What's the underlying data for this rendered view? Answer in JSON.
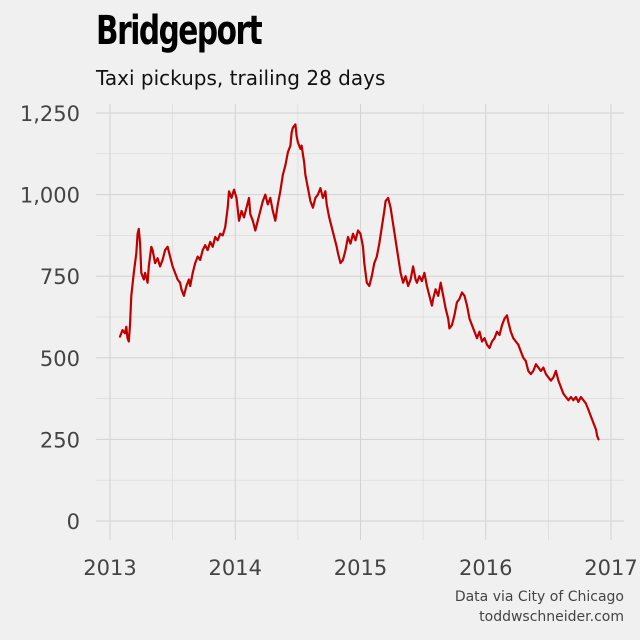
{
  "chart_data": {
    "type": "line",
    "title": "Bridgeport",
    "subtitle": "Taxi pickups, trailing 28 days",
    "xlabel": "",
    "ylabel": "",
    "xlim": [
      2013,
      2017.1
    ],
    "ylim": [
      -40,
      1290
    ],
    "x_ticks": [
      2013,
      2014,
      2015,
      2016,
      2017
    ],
    "x_tick_labels": [
      "2013",
      "2014",
      "2015",
      "2016",
      "2017"
    ],
    "y_ticks": [
      0,
      250,
      500,
      750,
      1000,
      1250
    ],
    "y_tick_labels": [
      "0",
      "250",
      "500",
      "750",
      "1,000",
      "1,250"
    ],
    "grid": true,
    "series": [
      {
        "color": "#c00000",
        "points": [
          [
            2013.08,
            565
          ],
          [
            2013.1,
            585
          ],
          [
            2013.12,
            575
          ],
          [
            2013.13,
            595
          ],
          [
            2013.14,
            560
          ],
          [
            2013.15,
            550
          ],
          [
            2013.16,
            600
          ],
          [
            2013.17,
            690
          ],
          [
            2013.19,
            760
          ],
          [
            2013.21,
            820
          ],
          [
            2013.22,
            880
          ],
          [
            2013.23,
            895
          ],
          [
            2013.24,
            850
          ],
          [
            2013.25,
            760
          ],
          [
            2013.27,
            740
          ],
          [
            2013.28,
            760
          ],
          [
            2013.3,
            730
          ],
          [
            2013.31,
            780
          ],
          [
            2013.33,
            840
          ],
          [
            2013.34,
            830
          ],
          [
            2013.36,
            790
          ],
          [
            2013.38,
            805
          ],
          [
            2013.4,
            780
          ],
          [
            2013.42,
            800
          ],
          [
            2013.44,
            830
          ],
          [
            2013.46,
            840
          ],
          [
            2013.48,
            810
          ],
          [
            2013.5,
            780
          ],
          [
            2013.52,
            760
          ],
          [
            2013.54,
            740
          ],
          [
            2013.56,
            730
          ],
          [
            2013.57,
            710
          ],
          [
            2013.59,
            690
          ],
          [
            2013.61,
            720
          ],
          [
            2013.63,
            740
          ],
          [
            2013.64,
            720
          ],
          [
            2013.66,
            760
          ],
          [
            2013.68,
            790
          ],
          [
            2013.7,
            810
          ],
          [
            2013.72,
            800
          ],
          [
            2013.74,
            830
          ],
          [
            2013.76,
            845
          ],
          [
            2013.78,
            830
          ],
          [
            2013.8,
            855
          ],
          [
            2013.82,
            840
          ],
          [
            2013.84,
            870
          ],
          [
            2013.86,
            860
          ],
          [
            2013.88,
            880
          ],
          [
            2013.9,
            875
          ],
          [
            2013.92,
            900
          ],
          [
            2013.94,
            960
          ],
          [
            2013.95,
            1010
          ],
          [
            2013.97,
            990
          ],
          [
            2013.99,
            1015
          ],
          [
            2014.01,
            990
          ],
          [
            2014.03,
            920
          ],
          [
            2014.05,
            950
          ],
          [
            2014.07,
            930
          ],
          [
            2014.09,
            960
          ],
          [
            2014.11,
            990
          ],
          [
            2014.12,
            940
          ],
          [
            2014.14,
            920
          ],
          [
            2014.16,
            890
          ],
          [
            2014.18,
            920
          ],
          [
            2014.2,
            950
          ],
          [
            2014.22,
            980
          ],
          [
            2014.24,
            1000
          ],
          [
            2014.26,
            970
          ],
          [
            2014.28,
            990
          ],
          [
            2014.3,
            950
          ],
          [
            2014.32,
            920
          ],
          [
            2014.34,
            970
          ],
          [
            2014.36,
            1010
          ],
          [
            2014.38,
            1060
          ],
          [
            2014.4,
            1090
          ],
          [
            2014.42,
            1130
          ],
          [
            2014.44,
            1150
          ],
          [
            2014.45,
            1190
          ],
          [
            2014.46,
            1205
          ],
          [
            2014.48,
            1215
          ],
          [
            2014.49,
            1180
          ],
          [
            2014.5,
            1160
          ],
          [
            2014.52,
            1140
          ],
          [
            2014.53,
            1150
          ],
          [
            2014.55,
            1100
          ],
          [
            2014.56,
            1060
          ],
          [
            2014.58,
            1020
          ],
          [
            2014.6,
            980
          ],
          [
            2014.62,
            960
          ],
          [
            2014.64,
            990
          ],
          [
            2014.66,
            1000
          ],
          [
            2014.68,
            1020
          ],
          [
            2014.7,
            990
          ],
          [
            2014.72,
            1010
          ],
          [
            2014.73,
            970
          ],
          [
            2014.75,
            930
          ],
          [
            2014.77,
            900
          ],
          [
            2014.79,
            870
          ],
          [
            2014.81,
            840
          ],
          [
            2014.82,
            820
          ],
          [
            2014.84,
            790
          ],
          [
            2014.86,
            800
          ],
          [
            2014.88,
            830
          ],
          [
            2014.9,
            870
          ],
          [
            2014.92,
            850
          ],
          [
            2014.94,
            880
          ],
          [
            2014.96,
            860
          ],
          [
            2014.98,
            890
          ],
          [
            2015.0,
            880
          ],
          [
            2015.02,
            840
          ],
          [
            2015.03,
            790
          ],
          [
            2015.05,
            730
          ],
          [
            2015.07,
            720
          ],
          [
            2015.09,
            750
          ],
          [
            2015.11,
            790
          ],
          [
            2015.13,
            810
          ],
          [
            2015.15,
            850
          ],
          [
            2015.17,
            900
          ],
          [
            2015.19,
            950
          ],
          [
            2015.2,
            980
          ],
          [
            2015.22,
            990
          ],
          [
            2015.24,
            960
          ],
          [
            2015.26,
            910
          ],
          [
            2015.28,
            860
          ],
          [
            2015.3,
            810
          ],
          [
            2015.32,
            760
          ],
          [
            2015.34,
            730
          ],
          [
            2015.36,
            750
          ],
          [
            2015.38,
            720
          ],
          [
            2015.4,
            740
          ],
          [
            2015.42,
            780
          ],
          [
            2015.44,
            740
          ],
          [
            2015.45,
            730
          ],
          [
            2015.47,
            750
          ],
          [
            2015.49,
            735
          ],
          [
            2015.51,
            760
          ],
          [
            2015.53,
            720
          ],
          [
            2015.55,
            690
          ],
          [
            2015.57,
            660
          ],
          [
            2015.58,
            680
          ],
          [
            2015.6,
            710
          ],
          [
            2015.62,
            690
          ],
          [
            2015.64,
            730
          ],
          [
            2015.66,
            690
          ],
          [
            2015.68,
            650
          ],
          [
            2015.7,
            620
          ],
          [
            2015.71,
            590
          ],
          [
            2015.73,
            600
          ],
          [
            2015.75,
            630
          ],
          [
            2015.77,
            670
          ],
          [
            2015.79,
            680
          ],
          [
            2015.81,
            700
          ],
          [
            2015.83,
            690
          ],
          [
            2015.85,
            660
          ],
          [
            2015.87,
            620
          ],
          [
            2015.89,
            600
          ],
          [
            2015.91,
            580
          ],
          [
            2015.93,
            560
          ],
          [
            2015.95,
            580
          ],
          [
            2015.97,
            550
          ],
          [
            2015.99,
            560
          ],
          [
            2016.01,
            540
          ],
          [
            2016.03,
            530
          ],
          [
            2016.05,
            550
          ],
          [
            2016.07,
            560
          ],
          [
            2016.09,
            580
          ],
          [
            2016.11,
            570
          ],
          [
            2016.13,
            600
          ],
          [
            2016.15,
            620
          ],
          [
            2016.17,
            630
          ],
          [
            2016.18,
            610
          ],
          [
            2016.2,
            580
          ],
          [
            2016.22,
            560
          ],
          [
            2016.24,
            550
          ],
          [
            2016.26,
            540
          ],
          [
            2016.28,
            520
          ],
          [
            2016.3,
            500
          ],
          [
            2016.32,
            490
          ],
          [
            2016.34,
            460
          ],
          [
            2016.36,
            450
          ],
          [
            2016.38,
            460
          ],
          [
            2016.4,
            480
          ],
          [
            2016.42,
            470
          ],
          [
            2016.44,
            460
          ],
          [
            2016.46,
            470
          ],
          [
            2016.48,
            450
          ],
          [
            2016.5,
            440
          ],
          [
            2016.52,
            430
          ],
          [
            2016.54,
            440
          ],
          [
            2016.56,
            460
          ],
          [
            2016.58,
            430
          ],
          [
            2016.6,
            410
          ],
          [
            2016.62,
            390
          ],
          [
            2016.64,
            380
          ],
          [
            2016.66,
            370
          ],
          [
            2016.68,
            380
          ],
          [
            2016.7,
            370
          ],
          [
            2016.72,
            380
          ],
          [
            2016.74,
            365
          ],
          [
            2016.76,
            380
          ],
          [
            2016.78,
            370
          ],
          [
            2016.8,
            360
          ],
          [
            2016.82,
            340
          ],
          [
            2016.84,
            320
          ],
          [
            2016.86,
            300
          ],
          [
            2016.88,
            280
          ],
          [
            2016.89,
            260
          ],
          [
            2016.9,
            250
          ]
        ]
      }
    ]
  },
  "caption": {
    "line1": "Data via City of Chicago",
    "line2": "toddwschneider.com"
  }
}
